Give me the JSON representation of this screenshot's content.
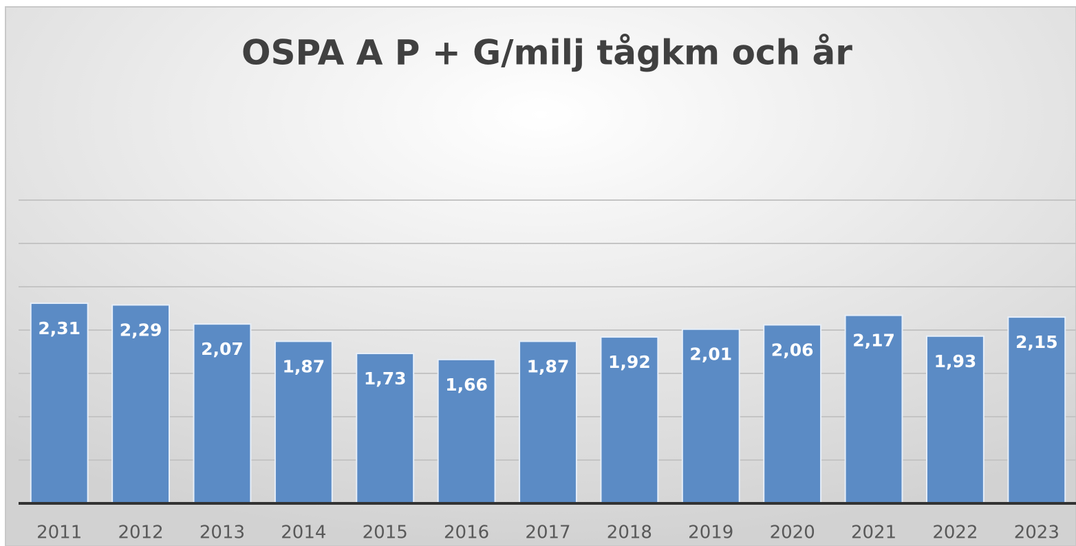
{
  "chart_data": {
    "type": "bar",
    "title": "OSPA A P + G/milj tågkm och år",
    "categories": [
      "2011",
      "2012",
      "2013",
      "2014",
      "2015",
      "2016",
      "2017",
      "2018",
      "2019",
      "2020",
      "2021",
      "2022",
      "2023"
    ],
    "values": [
      2.31,
      2.29,
      2.07,
      1.87,
      1.73,
      1.66,
      1.87,
      1.92,
      2.01,
      2.06,
      2.17,
      1.93,
      2.15
    ],
    "value_labels": [
      "2,31",
      "2,29",
      "2,07",
      "1,87",
      "1,73",
      "1,66",
      "1,87",
      "1,92",
      "2,01",
      "2,06",
      "2,17",
      "1,93",
      "2,15"
    ],
    "color": "#5b8bc5",
    "ylim": [
      0,
      3.5
    ],
    "yticks": [
      0,
      0.5,
      1,
      1.5,
      2,
      2.5,
      3,
      3.5
    ],
    "grid": true
  }
}
